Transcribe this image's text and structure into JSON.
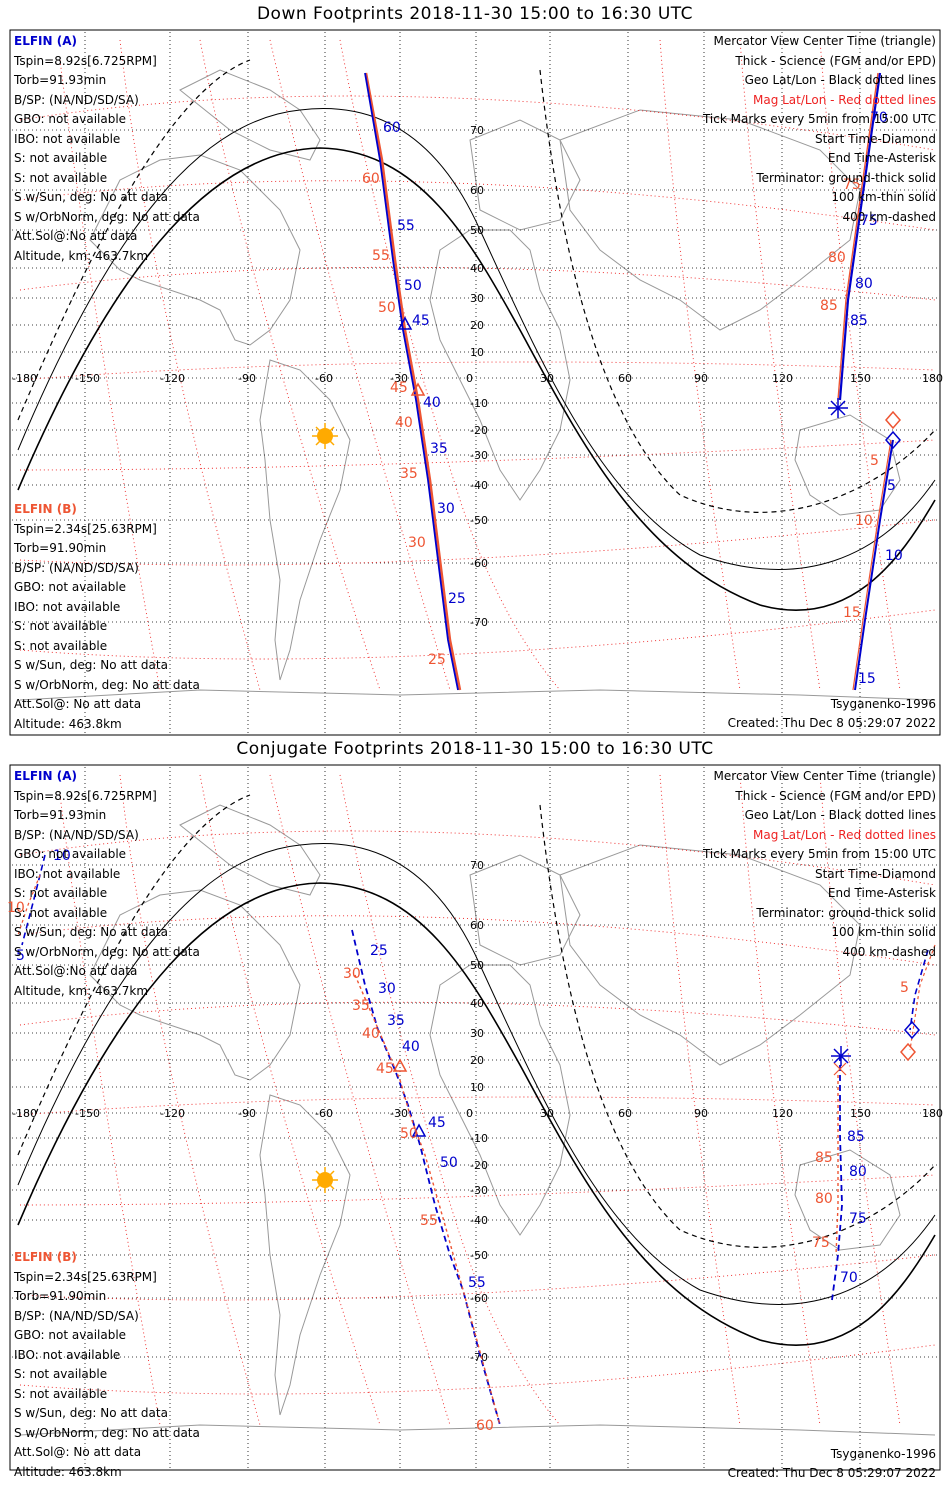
{
  "panels": [
    {
      "title": "Down Footprints 2018-11-30 15:00 to 16:30 UTC",
      "elfin_a": {
        "header": "ELFIN (A)",
        "lines": [
          "Tspin=8.92s[6.725RPM]",
          "Torb=91.93min",
          "B/SP: (NA/ND/SD/SA)",
          "GBO: not available",
          "IBO: not available",
          "S: not available",
          "S: not available",
          "S w/Sun, deg: No att data",
          "S w/OrbNorm, deg: No att data",
          "Att.Sol@:No att data",
          "Altitude, km: 463.7km"
        ]
      },
      "elfin_b": {
        "header": "ELFIN (B)",
        "lines": [
          "Tspin=2.34s[25.63RPM]",
          "Torb=91.90min",
          "B/SP: (NA/ND/SD/SA)",
          "GBO: not available",
          "IBO: not available",
          "S: not available",
          "S: not available",
          "S w/Sun, deg: No att data",
          "S w/OrbNorm, deg: No att data",
          "Att.Sol@: No att data",
          "Altitude: 463.8km"
        ]
      },
      "legend": [
        "Mercator View Center Time (triangle)",
        "Thick - Science (FGM and/or EPD)",
        "Geo Lat/Lon - Black dotted lines",
        "Mag Lat/Lon - Red dotted lines",
        "Tick Marks every 5min from 15:00 UTC",
        "Start Time-Diamond",
        "End Time-Asterisk",
        "Terminator: ground-thick solid",
        "100 km-thin solid",
        "400 km-dashed"
      ],
      "model": "Tsyganenko-1996",
      "created": "Created: Thu Dec  8 05:29:07 2022",
      "blue_labels": [
        "60",
        "55",
        "50",
        "45",
        "40",
        "35",
        "30",
        "25",
        "70",
        "75",
        "80",
        "85",
        "5",
        "10",
        "15"
      ],
      "red_labels": [
        "60",
        "55",
        "50",
        "45",
        "40",
        "35",
        "30",
        "25",
        "75",
        "80",
        "85",
        "5",
        "10",
        "15"
      ]
    },
    {
      "title": "Conjugate Footprints 2018-11-30 15:00 to 16:30 UTC",
      "elfin_a": {
        "header": "ELFIN (A)",
        "lines": [
          "Tspin=8.92s[6.725RPM]",
          "Torb=91.93min",
          "B/SP: (NA/ND/SD/SA)",
          "GBO: not available",
          "IBO: not available",
          "S: not available",
          "S: not available",
          "S w/Sun, deg: No att data",
          "S w/OrbNorm, deg: No att data",
          "Att.Sol@:No att data",
          "Altitude, km: 463.7km"
        ]
      },
      "elfin_b": {
        "header": "ELFIN (B)",
        "lines": [
          "Tspin=2.34s[25.63RPM]",
          "Torb=91.90min",
          "B/SP: (NA/ND/SD/SA)",
          "GBO: not available",
          "IBO: not available",
          "S: not available",
          "S: not available",
          "S w/Sun, deg: No att data",
          "S w/OrbNorm, deg: No att data",
          "Att.Sol@: No att data",
          "Altitude: 463.8km"
        ]
      },
      "legend": [
        "Mercator View Center Time (triangle)",
        "Thick - Science (FGM and/or EPD)",
        "Geo Lat/Lon - Black dotted lines",
        "Mag Lat/Lon - Red dotted lines",
        "Tick Marks every 5min from 15:00 UTC",
        "Start Time-Diamond",
        "End Time-Asterisk",
        "Terminator: ground-thick solid",
        "100 km-thin solid",
        "400 km-dashed"
      ],
      "model": "Tsyganenko-1996",
      "created": "Created: Thu Dec  8 05:29:07 2022",
      "blue_labels": [
        "25",
        "30",
        "35",
        "40",
        "45",
        "50",
        "55",
        "85",
        "80",
        "75",
        "70",
        "10",
        "5"
      ],
      "red_labels": [
        "30",
        "35",
        "40",
        "45",
        "50",
        "55",
        "60",
        "85",
        "80",
        "75",
        "10",
        "5"
      ]
    }
  ],
  "axes": {
    "lon_ticks": [
      "-180",
      "-150",
      "-120",
      "-90",
      "-60",
      "-30",
      "0",
      "30",
      "60",
      "90",
      "120",
      "150",
      "180"
    ],
    "lat_ticks": [
      "70",
      "60",
      "50",
      "40",
      "30",
      "20",
      "10",
      "-10",
      "-20",
      "-30",
      "-40",
      "-50",
      "-60",
      "-70"
    ]
  },
  "colors": {
    "elfin_a": "#0000cc",
    "elfin_b": "#ee5533",
    "mag_grid": "#ee2222",
    "geo_grid": "#000000",
    "sun": "#ffaa00"
  },
  "icons": [
    "sun-icon",
    "start-diamond-icon",
    "end-asterisk-icon",
    "center-triangle-icon"
  ]
}
